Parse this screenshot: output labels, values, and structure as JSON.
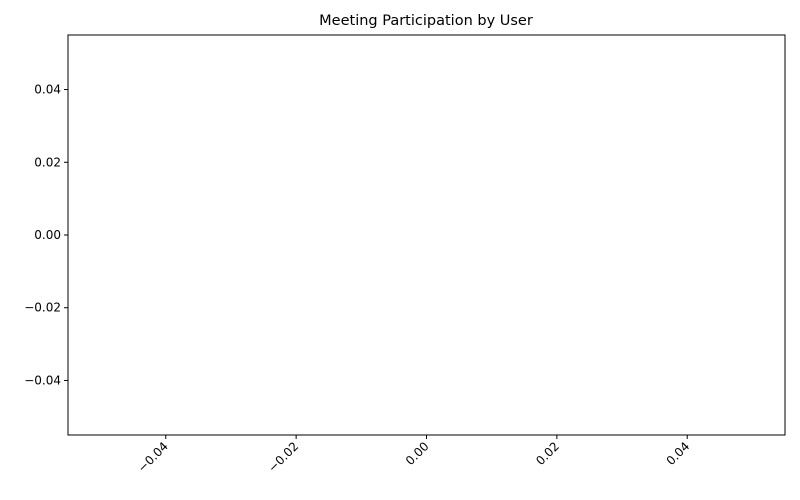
{
  "chart_data": {
    "type": "bar",
    "title": "Meeting Participation by User",
    "xlabel": "",
    "ylabel": "",
    "categories": [],
    "values": [],
    "xlim": [
      -0.055,
      0.055
    ],
    "ylim": [
      -0.055,
      0.055
    ],
    "x_ticks": [
      -0.04,
      -0.02,
      0.0,
      0.02,
      0.04
    ],
    "x_tick_labels": [
      "−0.04",
      "−0.02",
      "0.00",
      "0.02",
      "0.04"
    ],
    "x_tick_rotation": 45,
    "y_ticks": [
      0.04,
      0.02,
      0.0,
      -0.02,
      -0.04
    ],
    "y_tick_labels": [
      "0.04",
      "0.02",
      "0.00",
      "−0.02",
      "−0.04"
    ],
    "grid": false,
    "legend": "none"
  }
}
